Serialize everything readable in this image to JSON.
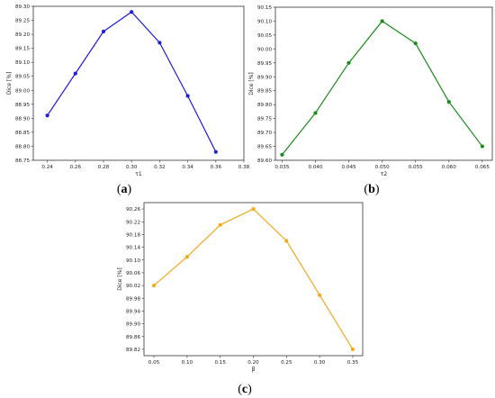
{
  "chart_data": [
    {
      "type": "line",
      "caption_letter": "a",
      "xlabel": "τ1",
      "ylabel": "Dice [%]",
      "color": "#1f1fd6",
      "x": [
        0.24,
        0.26,
        0.28,
        0.3,
        0.32,
        0.34,
        0.36
      ],
      "y": [
        88.91,
        89.06,
        89.21,
        89.28,
        89.17,
        88.98,
        88.78
      ],
      "xlim": [
        0.23,
        0.38
      ],
      "ylim": [
        88.75,
        89.3
      ],
      "xticks": [
        "0.24",
        "0.26",
        "0.28",
        "0.30",
        "0.32",
        "0.34",
        "0.36",
        "0.38"
      ],
      "yticks": [
        "88.75",
        "88.80",
        "88.85",
        "88.90",
        "88.95",
        "89.00",
        "89.05",
        "89.10",
        "89.15",
        "89.20",
        "89.25",
        "89.30"
      ]
    },
    {
      "type": "line",
      "caption_letter": "b",
      "xlabel": "τ2",
      "ylabel": "Dice [%]",
      "color": "#1a8a1a",
      "x": [
        0.035,
        0.04,
        0.045,
        0.05,
        0.055,
        0.06,
        0.065
      ],
      "y": [
        89.62,
        89.77,
        89.95,
        90.1,
        90.02,
        89.81,
        89.65
      ],
      "xlim": [
        0.034,
        0.0665
      ],
      "ylim": [
        89.6,
        90.15
      ],
      "xticks": [
        "0.035",
        "0.040",
        "0.045",
        "0.050",
        "0.055",
        "0.060",
        "0.065"
      ],
      "yticks": [
        "89.60",
        "89.65",
        "89.70",
        "89.75",
        "89.80",
        "89.85",
        "89.90",
        "89.95",
        "90.00",
        "90.05",
        "90.10",
        "90.15"
      ]
    },
    {
      "type": "line",
      "caption_letter": "c",
      "xlabel": "β",
      "ylabel": "Dice [%]",
      "color": "#f5a81c",
      "x": [
        0.05,
        0.1,
        0.15,
        0.2,
        0.25,
        0.3,
        0.35
      ],
      "y": [
        90.02,
        90.11,
        90.21,
        90.26,
        90.16,
        89.99,
        89.82
      ],
      "xlim": [
        0.035,
        0.365
      ],
      "ylim": [
        89.8,
        90.28
      ],
      "xticks": [
        "0.05",
        "0.10",
        "0.15",
        "0.20",
        "0.25",
        "0.30",
        "0.35"
      ],
      "yticks": [
        "89.82",
        "89.86",
        "89.90",
        "89.94",
        "89.98",
        "90.02",
        "90.06",
        "90.10",
        "90.14",
        "90.18",
        "90.22",
        "90.26"
      ]
    }
  ]
}
